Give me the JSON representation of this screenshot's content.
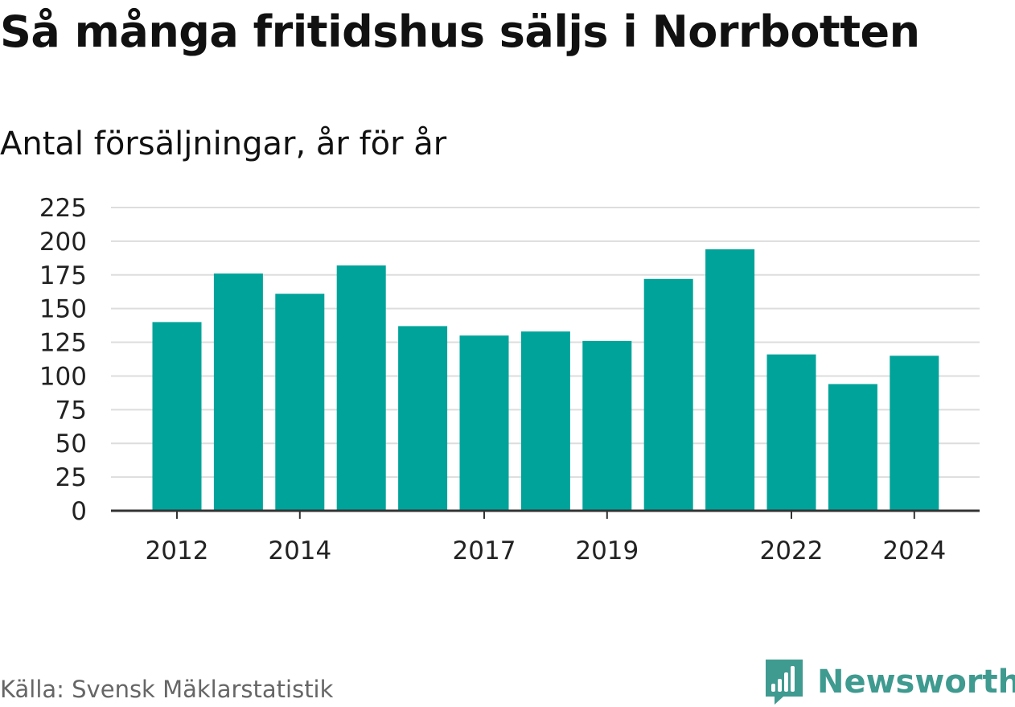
{
  "title": "Så många fritidshus säljs i Norrbotten",
  "subtitle": "Antal försäljningar, år för år",
  "source": "Källa: Svensk Mäklarstatistik",
  "brand": "Newsworthy",
  "colors": {
    "bar": "#00a39a",
    "grid": "#dddddd",
    "axis": "#333333",
    "brand": "#3f9a90"
  },
  "chart_data": {
    "type": "bar",
    "categories": [
      "2012",
      "2013",
      "2014",
      "2015",
      "2016",
      "2017",
      "2018",
      "2019",
      "2020",
      "2021",
      "2022",
      "2023",
      "2024"
    ],
    "values": [
      140,
      176,
      161,
      182,
      137,
      130,
      133,
      126,
      172,
      194,
      116,
      94,
      115
    ],
    "x_tick_labels": [
      "2012",
      "2014",
      "2017",
      "2019",
      "2022",
      "2024"
    ],
    "y_ticks": [
      0,
      25,
      50,
      75,
      100,
      125,
      150,
      175,
      200,
      225
    ],
    "ylim": [
      0,
      225
    ],
    "xlabel": "",
    "ylabel": "",
    "grid": true,
    "legend": "none"
  }
}
